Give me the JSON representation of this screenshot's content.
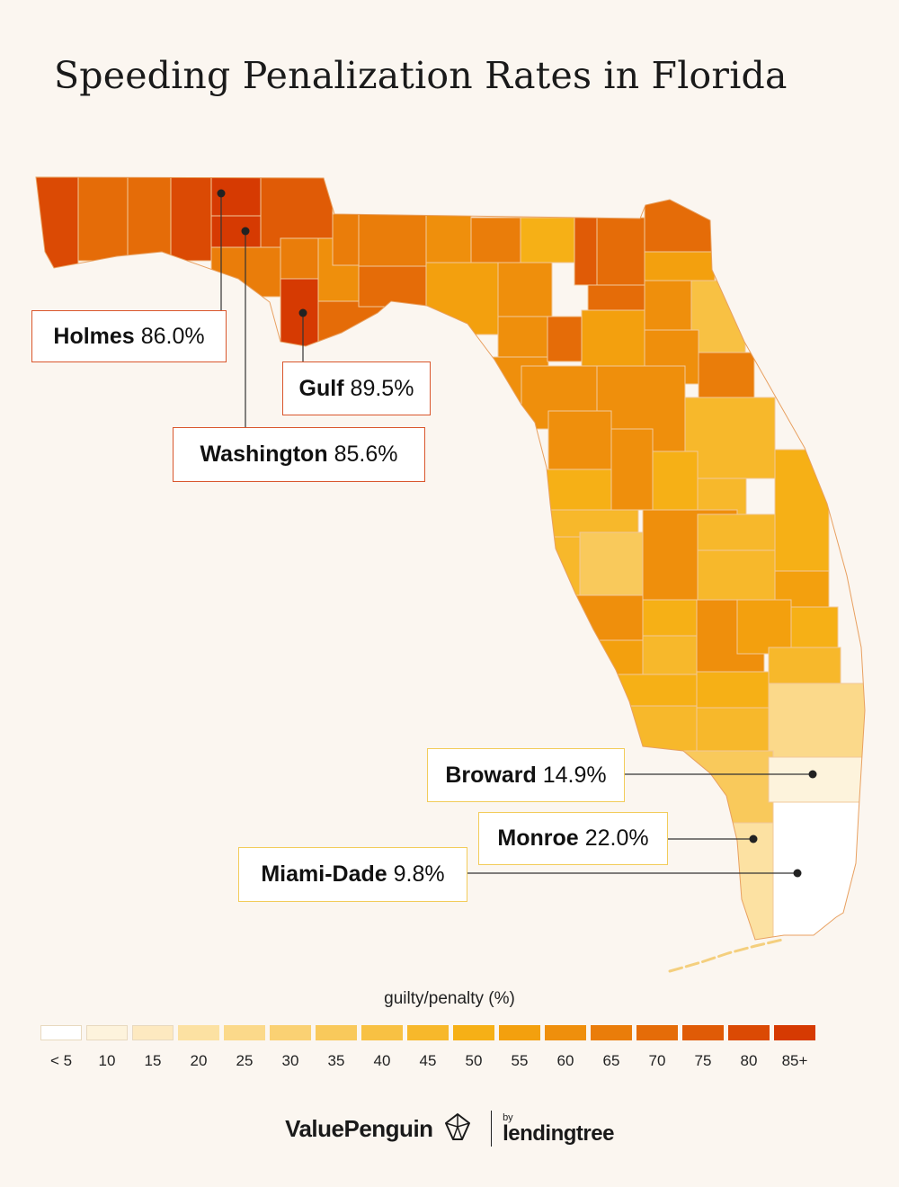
{
  "title": "Speeding Penalization Rates in Florida",
  "map": {
    "region": "Florida",
    "counties": [
      {
        "id": "escambia",
        "bucket": "80"
      },
      {
        "id": "santa-rosa",
        "bucket": "70"
      },
      {
        "id": "okaloosa",
        "bucket": "70"
      },
      {
        "id": "walton",
        "bucket": "80"
      },
      {
        "id": "holmes",
        "bucket": "85+"
      },
      {
        "id": "washington",
        "bucket": "85+"
      },
      {
        "id": "jackson",
        "bucket": "75"
      },
      {
        "id": "bay",
        "bucket": "65"
      },
      {
        "id": "gulf",
        "bucket": "85+"
      },
      {
        "id": "calhoun",
        "bucket": "65"
      },
      {
        "id": "liberty",
        "bucket": "60"
      },
      {
        "id": "franklin",
        "bucket": "70"
      },
      {
        "id": "gadsden",
        "bucket": "65"
      },
      {
        "id": "leon",
        "bucket": "65"
      },
      {
        "id": "wakulla",
        "bucket": "70"
      },
      {
        "id": "jefferson",
        "bucket": "60"
      },
      {
        "id": "madison",
        "bucket": "65"
      },
      {
        "id": "taylor",
        "bucket": "55"
      },
      {
        "id": "hamilton",
        "bucket": "50"
      },
      {
        "id": "suwannee",
        "bucket": "60"
      },
      {
        "id": "lafayette",
        "bucket": "60"
      },
      {
        "id": "columbia",
        "bucket": "75"
      },
      {
        "id": "dixie",
        "bucket": "60"
      },
      {
        "id": "gilchrist",
        "bucket": "70"
      },
      {
        "id": "alachua",
        "bucket": "55"
      },
      {
        "id": "levy",
        "bucket": "60"
      },
      {
        "id": "baker",
        "bucket": "70"
      },
      {
        "id": "union",
        "bucket": "70"
      },
      {
        "id": "bradford",
        "bucket": "60"
      },
      {
        "id": "nassau",
        "bucket": "70"
      },
      {
        "id": "duval",
        "bucket": "55"
      },
      {
        "id": "clay",
        "bucket": "60"
      },
      {
        "id": "st-johns",
        "bucket": "40"
      },
      {
        "id": "putnam",
        "bucket": "60"
      },
      {
        "id": "flagler",
        "bucket": "65"
      },
      {
        "id": "marion",
        "bucket": "60"
      },
      {
        "id": "volusia",
        "bucket": "45"
      },
      {
        "id": "citrus",
        "bucket": "60"
      },
      {
        "id": "sumter",
        "bucket": "60"
      },
      {
        "id": "lake",
        "bucket": "50"
      },
      {
        "id": "seminole",
        "bucket": "45"
      },
      {
        "id": "hernando",
        "bucket": "50"
      },
      {
        "id": "pasco",
        "bucket": "45"
      },
      {
        "id": "pinellas",
        "bucket": "45"
      },
      {
        "id": "hillsborough",
        "bucket": "35"
      },
      {
        "id": "polk",
        "bucket": "60"
      },
      {
        "id": "orange",
        "bucket": "45"
      },
      {
        "id": "osceola",
        "bucket": "45"
      },
      {
        "id": "brevard",
        "bucket": "50"
      },
      {
        "id": "indian-river",
        "bucket": "55"
      },
      {
        "id": "manatee",
        "bucket": "60"
      },
      {
        "id": "hardee",
        "bucket": "50"
      },
      {
        "id": "highlands",
        "bucket": "60"
      },
      {
        "id": "okeechobee",
        "bucket": "55"
      },
      {
        "id": "st-lucie",
        "bucket": "50"
      },
      {
        "id": "sarasota",
        "bucket": "55"
      },
      {
        "id": "desoto",
        "bucket": "45"
      },
      {
        "id": "charlotte",
        "bucket": "50"
      },
      {
        "id": "glades",
        "bucket": "50"
      },
      {
        "id": "martin",
        "bucket": "45"
      },
      {
        "id": "palm-beach",
        "bucket": "25"
      },
      {
        "id": "lee",
        "bucket": "45"
      },
      {
        "id": "hendry",
        "bucket": "45"
      },
      {
        "id": "collier",
        "bucket": "35"
      },
      {
        "id": "broward",
        "bucket": "10"
      },
      {
        "id": "miami-dade",
        "bucket": "< 5"
      },
      {
        "id": "monroe",
        "bucket": "20"
      }
    ]
  },
  "callouts": [
    {
      "id": "holmes",
      "name": "Holmes",
      "value": "86.0%"
    },
    {
      "id": "gulf",
      "name": "Gulf",
      "value": "89.5%"
    },
    {
      "id": "washington",
      "name": "Washington",
      "value": "85.6%"
    },
    {
      "id": "broward",
      "name": "Broward",
      "value": "14.9%"
    },
    {
      "id": "monroe",
      "name": "Monroe",
      "value": "22.0%"
    },
    {
      "id": "miami-dade",
      "name": "Miami-Dade",
      "value": "9.8%"
    }
  ],
  "legend": {
    "title": "guilty/penalty (%)",
    "labels": [
      "< 5",
      "10",
      "15",
      "20",
      "25",
      "30",
      "35",
      "40",
      "45",
      "50",
      "55",
      "60",
      "65",
      "70",
      "75",
      "80",
      "85+"
    ],
    "colors": [
      "#ffffff",
      "#fdf3dc",
      "#fde9c0",
      "#fce1a2",
      "#fbd98a",
      "#fad173",
      "#f9c95b",
      "#f8c143",
      "#f7b82b",
      "#f6b016",
      "#f3a00e",
      "#ef8f0c",
      "#ea7d0a",
      "#e56c08",
      "#e05b06",
      "#db4a04",
      "#d63a02"
    ]
  },
  "footer": {
    "brand": "ValuePenguin",
    "by": "by",
    "partner": "lendingtree",
    "brand_icon": "penguin-logo-icon"
  }
}
